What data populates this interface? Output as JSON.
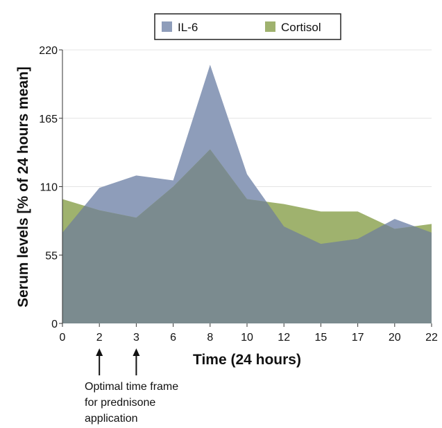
{
  "chart_data": {
    "type": "area",
    "title": "",
    "xlabel": "Time (24 hours)",
    "ylabel": "Serum levels [% of 24 hours mean]",
    "x": [
      "0",
      "2",
      "3",
      "6",
      "8",
      "10",
      "12",
      "15",
      "17",
      "20",
      "22"
    ],
    "ylim": [
      0,
      220
    ],
    "yticks": [
      "0",
      "55",
      "110",
      "165",
      "220"
    ],
    "grid": true,
    "legend_position": "top-center",
    "series": [
      {
        "name": "IL-6",
        "color": "#8e9dba",
        "values": [
          73,
          109,
          119,
          115,
          208,
          120,
          78,
          64,
          68,
          84,
          73
        ]
      },
      {
        "name": "Cortisol",
        "color": "#9fb26e",
        "values": [
          100,
          91,
          85,
          110,
          140,
          100,
          96,
          90,
          90,
          76,
          80
        ]
      }
    ],
    "overlap_color": "#7b8b8f",
    "annotations": [
      {
        "x": [
          "2",
          "3"
        ],
        "lines": [
          "Optimal time frame",
          "for prednisone",
          "application"
        ]
      }
    ]
  }
}
